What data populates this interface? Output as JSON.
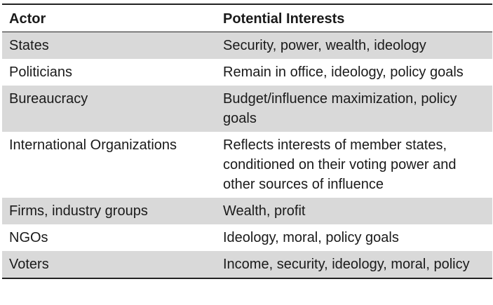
{
  "table": {
    "headers": [
      "Actor",
      "Potential Interests"
    ],
    "rows": [
      {
        "actor": "States",
        "interests": "Security, power, wealth, ideology",
        "shaded": true
      },
      {
        "actor": "Politicians",
        "interests": "Remain in office, ideology, policy goals",
        "shaded": false
      },
      {
        "actor": "Bureaucracy",
        "interests": "Budget/influence maximization, policy goals",
        "shaded": true
      },
      {
        "actor": "International Organizations",
        "interests": "Reflects interests of member states, conditioned on their voting power and other sources of influence",
        "shaded": false
      },
      {
        "actor": "Firms, industry groups",
        "interests": "Wealth, profit",
        "shaded": true
      },
      {
        "actor": "NGOs",
        "interests": "Ideology, moral, policy goals",
        "shaded": false
      },
      {
        "actor": "Voters",
        "interests": "Income, security, ideology, moral, policy",
        "shaded": true
      }
    ]
  }
}
